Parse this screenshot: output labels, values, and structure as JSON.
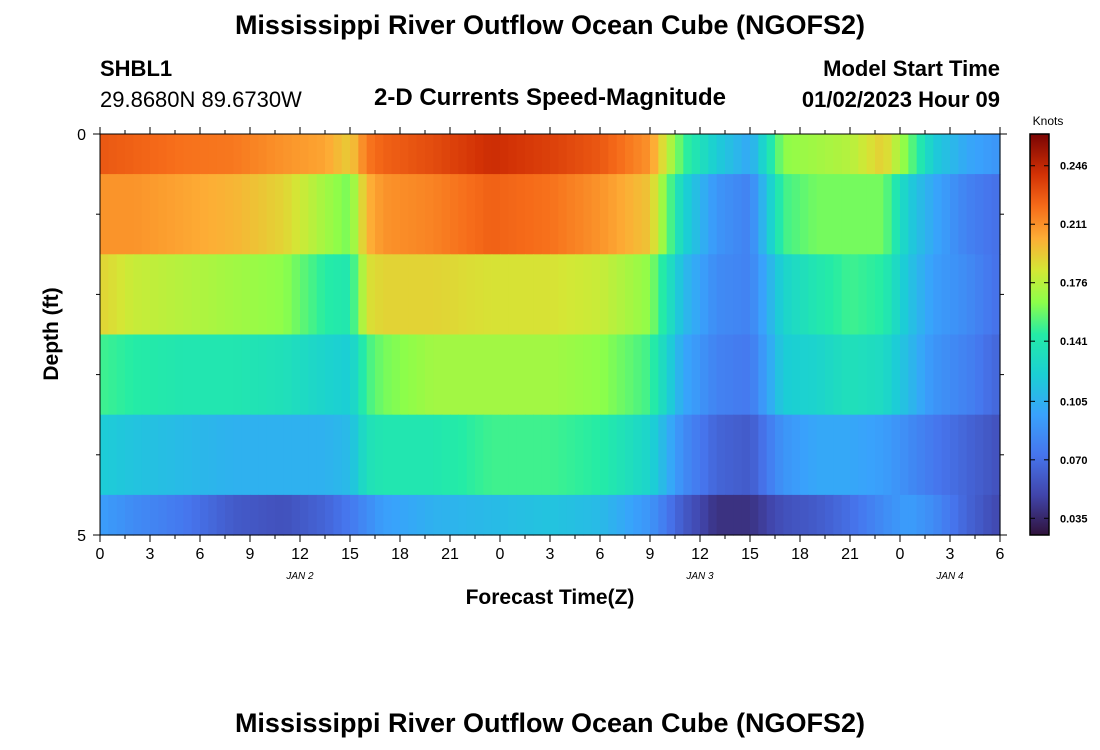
{
  "header": {
    "main_title": "Mississippi River Outflow Ocean Cube (NGOFS2)",
    "station_id": "SHBL1",
    "coordinates": "29.8680N  89.6730W",
    "plot_title": "2-D Currents Speed-Magnitude",
    "model_start_label": "Model Start Time",
    "model_start_value": "01/02/2023 Hour 09"
  },
  "footer": {
    "repeat_title": "Mississippi River Outflow Ocean Cube (NGOFS2)"
  },
  "chart_data": {
    "type": "heatmap",
    "xlabel": "Forecast Time(Z)",
    "ylabel": "Depth (ft)",
    "x_range_hours": [
      0,
      54
    ],
    "x_ticks": [
      {
        "hour": 0,
        "label": "0"
      },
      {
        "hour": 3,
        "label": "3"
      },
      {
        "hour": 6,
        "label": "6"
      },
      {
        "hour": 9,
        "label": "9"
      },
      {
        "hour": 12,
        "label": "12"
      },
      {
        "hour": 15,
        "label": "15"
      },
      {
        "hour": 18,
        "label": "18"
      },
      {
        "hour": 21,
        "label": "21"
      },
      {
        "hour": 24,
        "label": "0"
      },
      {
        "hour": 27,
        "label": "3"
      },
      {
        "hour": 30,
        "label": "6"
      },
      {
        "hour": 33,
        "label": "9"
      },
      {
        "hour": 36,
        "label": "12"
      },
      {
        "hour": 39,
        "label": "15"
      },
      {
        "hour": 42,
        "label": "18"
      },
      {
        "hour": 45,
        "label": "21"
      },
      {
        "hour": 48,
        "label": "0"
      },
      {
        "hour": 51,
        "label": "3"
      },
      {
        "hour": 54,
        "label": "6"
      }
    ],
    "date_labels": [
      {
        "hour": 12,
        "label": "JAN 2"
      },
      {
        "hour": 36,
        "label": "JAN 3"
      },
      {
        "hour": 51,
        "label": "JAN 4"
      }
    ],
    "y_range": [
      0,
      5
    ],
    "y_tick_labels": [
      {
        "value": 0,
        "label": "0"
      },
      {
        "value": 5,
        "label": "5"
      }
    ],
    "y_layers": [
      {
        "top": 0.0,
        "bottom": 0.5
      },
      {
        "top": 0.5,
        "bottom": 1.5
      },
      {
        "top": 1.5,
        "bottom": 2.5
      },
      {
        "top": 2.5,
        "bottom": 3.5
      },
      {
        "top": 3.5,
        "bottom": 4.5
      },
      {
        "top": 4.5,
        "bottom": 5.0
      }
    ],
    "keyframes_hours": [
      0,
      2,
      5,
      8,
      11,
      13.5,
      15,
      16,
      17,
      20,
      23.5,
      27,
      30,
      33,
      35,
      37,
      39,
      41,
      43,
      45,
      47,
      48.5,
      50,
      52,
      54
    ],
    "layer_speeds": [
      [
        0.228,
        0.225,
        0.22,
        0.218,
        0.21,
        0.205,
        0.192,
        0.218,
        0.225,
        0.232,
        0.243,
        0.236,
        0.228,
        0.21,
        0.15,
        0.12,
        0.1,
        0.165,
        0.17,
        0.175,
        0.192,
        0.16,
        0.12,
        0.1,
        0.09
      ],
      [
        0.21,
        0.21,
        0.205,
        0.2,
        0.19,
        0.17,
        0.16,
        0.2,
        0.21,
        0.215,
        0.225,
        0.22,
        0.21,
        0.195,
        0.125,
        0.09,
        0.08,
        0.15,
        0.16,
        0.16,
        0.16,
        0.12,
        0.1,
        0.08,
        0.07
      ],
      [
        0.19,
        0.18,
        0.175,
        0.17,
        0.165,
        0.145,
        0.14,
        0.185,
        0.19,
        0.19,
        0.185,
        0.185,
        0.18,
        0.165,
        0.11,
        0.085,
        0.08,
        0.125,
        0.14,
        0.15,
        0.145,
        0.115,
        0.095,
        0.085,
        0.07
      ],
      [
        0.15,
        0.145,
        0.14,
        0.14,
        0.135,
        0.125,
        0.12,
        0.15,
        0.16,
        0.17,
        0.17,
        0.17,
        0.165,
        0.15,
        0.1,
        0.08,
        0.075,
        0.12,
        0.125,
        0.135,
        0.13,
        0.11,
        0.09,
        0.08,
        0.065
      ],
      [
        0.12,
        0.115,
        0.11,
        0.105,
        0.105,
        0.105,
        0.11,
        0.135,
        0.14,
        0.14,
        0.15,
        0.15,
        0.145,
        0.125,
        0.085,
        0.065,
        0.06,
        0.09,
        0.1,
        0.1,
        0.095,
        0.085,
        0.075,
        0.065,
        0.055
      ],
      [
        0.095,
        0.085,
        0.075,
        0.06,
        0.055,
        0.065,
        0.075,
        0.085,
        0.095,
        0.105,
        0.11,
        0.115,
        0.11,
        0.09,
        0.06,
        0.04,
        0.04,
        0.055,
        0.06,
        0.07,
        0.085,
        0.095,
        0.085,
        0.065,
        0.05
      ]
    ],
    "colorbar": {
      "unit": "Knots",
      "range": [
        0.025,
        0.265
      ],
      "ticks": [
        {
          "value": 0.035,
          "label": "0.035"
        },
        {
          "value": 0.07,
          "label": "0.070"
        },
        {
          "value": 0.105,
          "label": "0.105"
        },
        {
          "value": 0.141,
          "label": "0.141"
        },
        {
          "value": 0.176,
          "label": "0.176"
        },
        {
          "value": 0.211,
          "label": "0.211"
        },
        {
          "value": 0.246,
          "label": "0.246"
        }
      ],
      "colors": [
        {
          "at": 0.0,
          "color": "#30123b"
        },
        {
          "at": 0.1,
          "color": "#4145ab"
        },
        {
          "at": 0.2,
          "color": "#4675ed"
        },
        {
          "at": 0.3,
          "color": "#39a2fc"
        },
        {
          "at": 0.4,
          "color": "#1bcfd4"
        },
        {
          "at": 0.5,
          "color": "#24eca6"
        },
        {
          "at": 0.58,
          "color": "#8cfe4a"
        },
        {
          "at": 0.66,
          "color": "#d4e735"
        },
        {
          "at": 0.74,
          "color": "#fdad35"
        },
        {
          "at": 0.82,
          "color": "#f66b19"
        },
        {
          "at": 0.9,
          "color": "#d23105"
        },
        {
          "at": 1.0,
          "color": "#7a0403"
        }
      ]
    }
  }
}
